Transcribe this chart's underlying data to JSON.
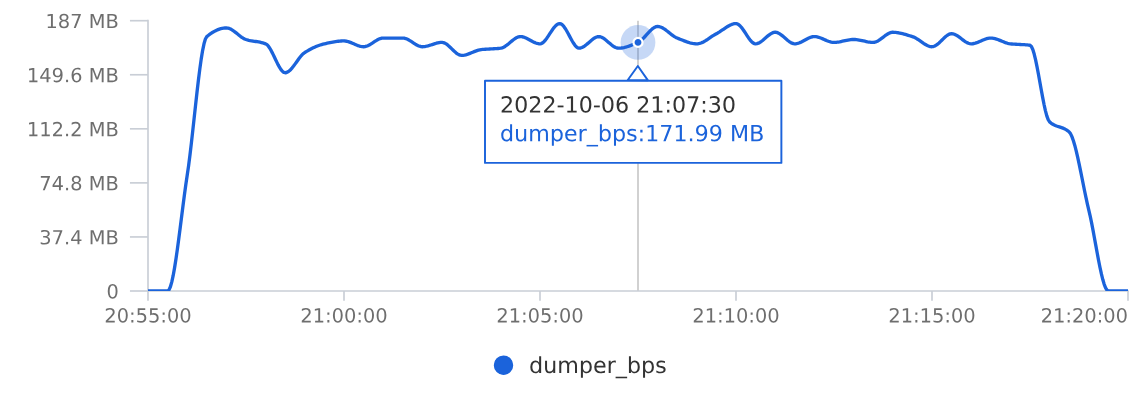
{
  "chart_data": {
    "type": "line",
    "x": [
      "2022-10-06T20:55:00",
      "2022-10-06T20:55:30",
      "2022-10-06T20:56:00",
      "2022-10-06T20:56:30",
      "2022-10-06T20:57:00",
      "2022-10-06T20:57:30",
      "2022-10-06T20:58:00",
      "2022-10-06T20:58:30",
      "2022-10-06T20:59:00",
      "2022-10-06T20:59:30",
      "2022-10-06T21:00:00",
      "2022-10-06T21:00:30",
      "2022-10-06T21:01:00",
      "2022-10-06T21:01:30",
      "2022-10-06T21:02:00",
      "2022-10-06T21:02:30",
      "2022-10-06T21:03:00",
      "2022-10-06T21:03:30",
      "2022-10-06T21:04:00",
      "2022-10-06T21:04:30",
      "2022-10-06T21:05:00",
      "2022-10-06T21:05:30",
      "2022-10-06T21:06:00",
      "2022-10-06T21:06:30",
      "2022-10-06T21:07:00",
      "2022-10-06T21:07:30",
      "2022-10-06T21:08:00",
      "2022-10-06T21:08:30",
      "2022-10-06T21:09:00",
      "2022-10-06T21:09:30",
      "2022-10-06T21:10:00",
      "2022-10-06T21:10:30",
      "2022-10-06T21:11:00",
      "2022-10-06T21:11:30",
      "2022-10-06T21:12:00",
      "2022-10-06T21:12:30",
      "2022-10-06T21:13:00",
      "2022-10-06T21:13:30",
      "2022-10-06T21:14:00",
      "2022-10-06T21:14:30",
      "2022-10-06T21:15:00",
      "2022-10-06T21:15:30",
      "2022-10-06T21:16:00",
      "2022-10-06T21:16:30",
      "2022-10-06T21:17:00",
      "2022-10-06T21:17:30",
      "2022-10-06T21:18:00",
      "2022-10-06T21:18:30",
      "2022-10-06T21:19:00",
      "2022-10-06T21:19:30",
      "2022-10-06T21:20:00"
    ],
    "series": [
      {
        "name": "dumper_bps",
        "color": "#1b63db",
        "values": [
          0,
          0,
          80,
          176,
          182,
          174,
          171,
          151,
          165,
          171,
          173,
          169,
          175,
          175,
          169,
          172,
          163,
          167,
          168,
          176,
          171,
          185,
          168,
          176,
          168,
          171.99,
          183,
          175,
          171,
          178,
          185,
          171,
          179,
          171,
          176,
          172,
          174,
          172,
          179,
          176,
          169,
          178,
          171,
          175,
          171,
          170,
          117,
          110,
          56,
          0,
          0
        ]
      }
    ],
    "xlim": [
      "2022-10-06T20:55:00",
      "2022-10-06T21:20:00"
    ],
    "xticks": [
      {
        "value": "2022-10-06T20:55:00",
        "label": "20:55:00"
      },
      {
        "value": "2022-10-06T21:00:00",
        "label": "21:00:00"
      },
      {
        "value": "2022-10-06T21:05:00",
        "label": "21:05:00"
      },
      {
        "value": "2022-10-06T21:10:00",
        "label": "21:10:00"
      },
      {
        "value": "2022-10-06T21:15:00",
        "label": "21:15:00"
      },
      {
        "value": "2022-10-06T21:20:00",
        "label": "21:20:00"
      }
    ],
    "ylim": [
      0,
      187
    ],
    "yticks": [
      0,
      {
        "value": 37.4,
        "label": "37.4 MB"
      },
      {
        "value": 74.8,
        "label": "74.8 MB"
      },
      {
        "value": 112.2,
        "label": "112.2 MB"
      },
      {
        "value": 149.6,
        "label": "149.6 MB"
      },
      {
        "value": 187,
        "label": "187 MB"
      }
    ],
    "legend": "bottom",
    "line_style": "solid",
    "ref_lines": [
      {
        "axis": "x",
        "value": "2022-10-06T21:07:30",
        "color": "#c8c8c8"
      }
    ],
    "annotations": [
      {
        "text": "2022-10-06 21:07:30",
        "x": "2022-10-06T21:07:30",
        "y": 171.99
      },
      "dumper_bps:171.99 MB"
    ]
  }
}
